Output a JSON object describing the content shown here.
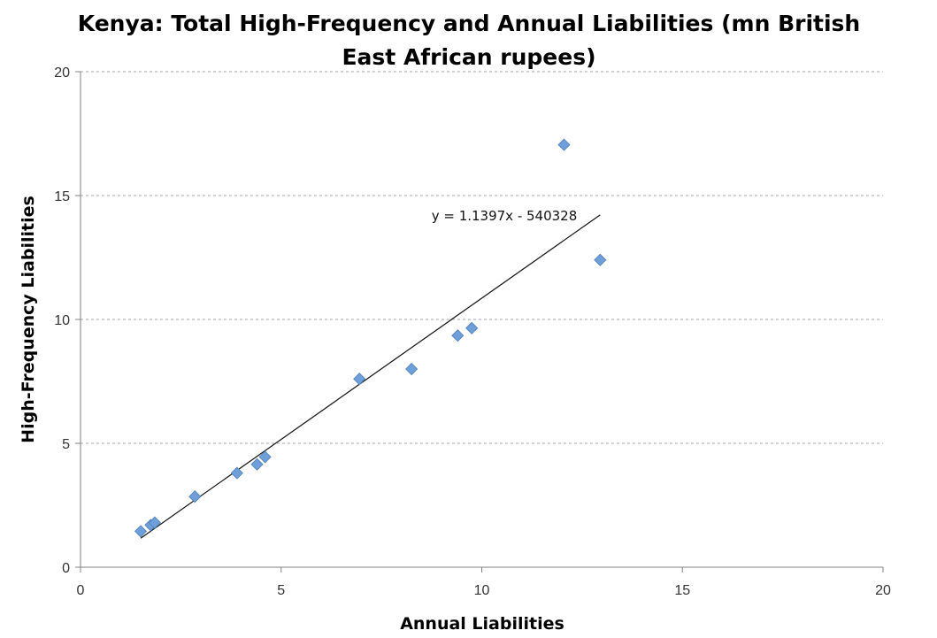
{
  "chart_data": {
    "type": "scatter",
    "title_lines": [
      "Kenya: Total High-Frequency and Annual Liabilities (mn British",
      "East African rupees)"
    ],
    "xlabel": "Annual Liabilities",
    "ylabel": "High-Frequency Liabilities",
    "xlim": [
      0,
      20
    ],
    "ylim": [
      0,
      20
    ],
    "x_ticks": [
      0,
      5,
      10,
      15,
      20
    ],
    "y_ticks": [
      0,
      5,
      10,
      15,
      20
    ],
    "grid": "horizontal dashed",
    "legend": "none",
    "marker": "diamond",
    "marker_color": "#6f9fd8",
    "series": [
      {
        "points": [
          {
            "x": 1.5,
            "y": 1.45
          },
          {
            "x": 1.75,
            "y": 1.7
          },
          {
            "x": 1.85,
            "y": 1.8
          },
          {
            "x": 2.85,
            "y": 2.85
          },
          {
            "x": 3.9,
            "y": 3.8
          },
          {
            "x": 4.4,
            "y": 4.15
          },
          {
            "x": 4.6,
            "y": 4.45
          },
          {
            "x": 6.95,
            "y": 7.6
          },
          {
            "x": 8.25,
            "y": 8.0
          },
          {
            "x": 9.4,
            "y": 9.35
          },
          {
            "x": 9.75,
            "y": 9.65
          },
          {
            "x": 12.05,
            "y": 17.05
          },
          {
            "x": 12.95,
            "y": 12.4
          }
        ]
      }
    ],
    "trendline": {
      "label": "y = 1.1397x - 540328",
      "start": {
        "x": 1.5,
        "y": 1.17
      },
      "end": {
        "x": 12.95,
        "y": 14.22
      },
      "color": "#111111"
    }
  }
}
